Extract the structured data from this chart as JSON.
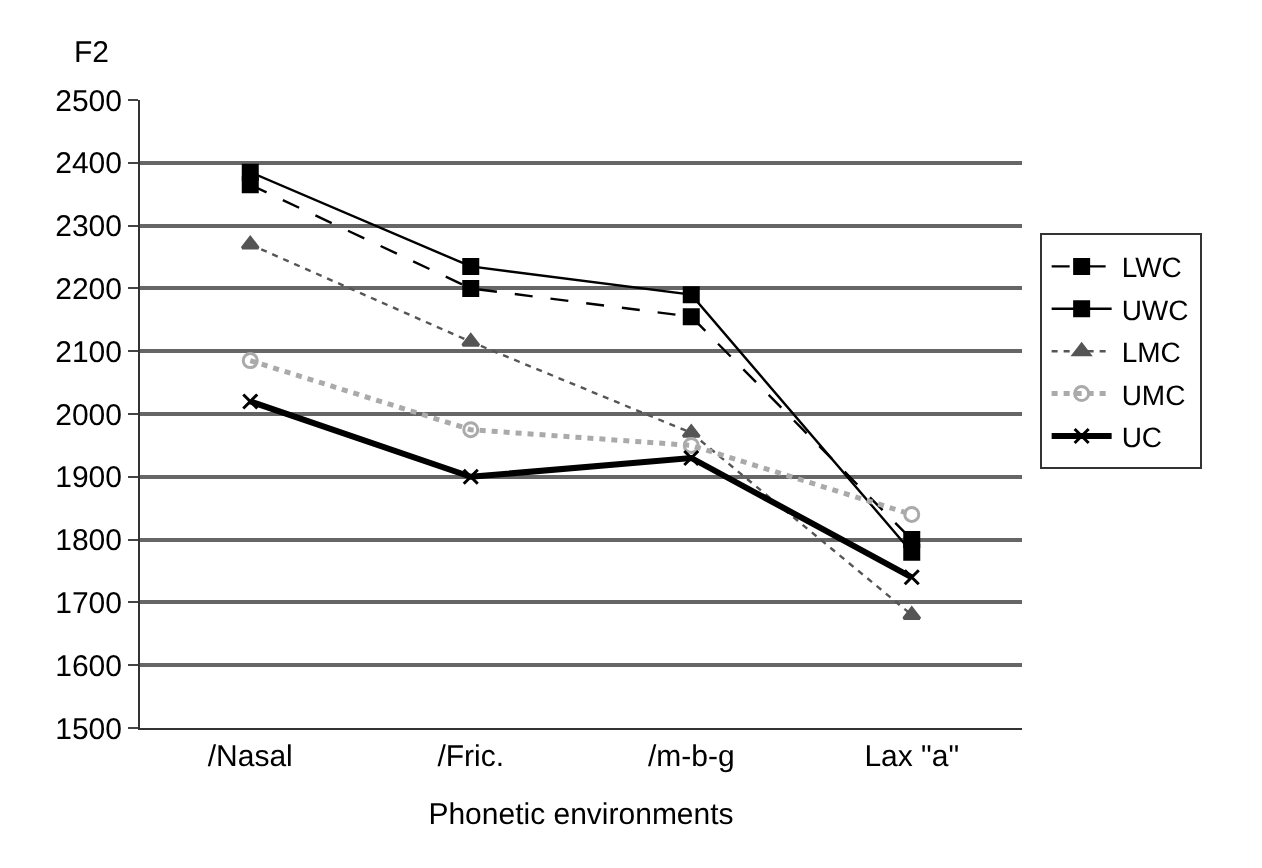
{
  "chart_data": {
    "type": "line",
    "ylabel": "F2",
    "xlabel": "Phonetic environments",
    "categories": [
      "/Nasal",
      "/Fric.",
      "/m-b-g",
      "Lax \"a\""
    ],
    "ylim": [
      1500,
      2500
    ],
    "yticks": [
      1500,
      1600,
      1700,
      1800,
      1900,
      2000,
      2100,
      2200,
      2300,
      2400,
      2500
    ],
    "grid": "y",
    "legend": "right",
    "series": [
      {
        "name": "LWC",
        "color": "#000000",
        "marker": "square",
        "line_style": "dashed",
        "values": [
          2365,
          2200,
          2155,
          1800
        ]
      },
      {
        "name": "UWC",
        "color": "#000000",
        "marker": "square",
        "line_style": "solid",
        "values": [
          2385,
          2235,
          2190,
          1780
        ]
      },
      {
        "name": "LMC",
        "color": "#555555",
        "marker": "triangle",
        "line_style": "dotted",
        "values": [
          2270,
          2115,
          1970,
          1680
        ]
      },
      {
        "name": "UMC",
        "color": "#aaaaaa",
        "marker": "circle",
        "line_style": "dotted",
        "values": [
          2085,
          1975,
          1950,
          1840
        ]
      },
      {
        "name": "UC",
        "color": "#000000",
        "marker": "cross",
        "line_style": "solid",
        "values": [
          2020,
          1900,
          1930,
          1740
        ]
      }
    ]
  }
}
